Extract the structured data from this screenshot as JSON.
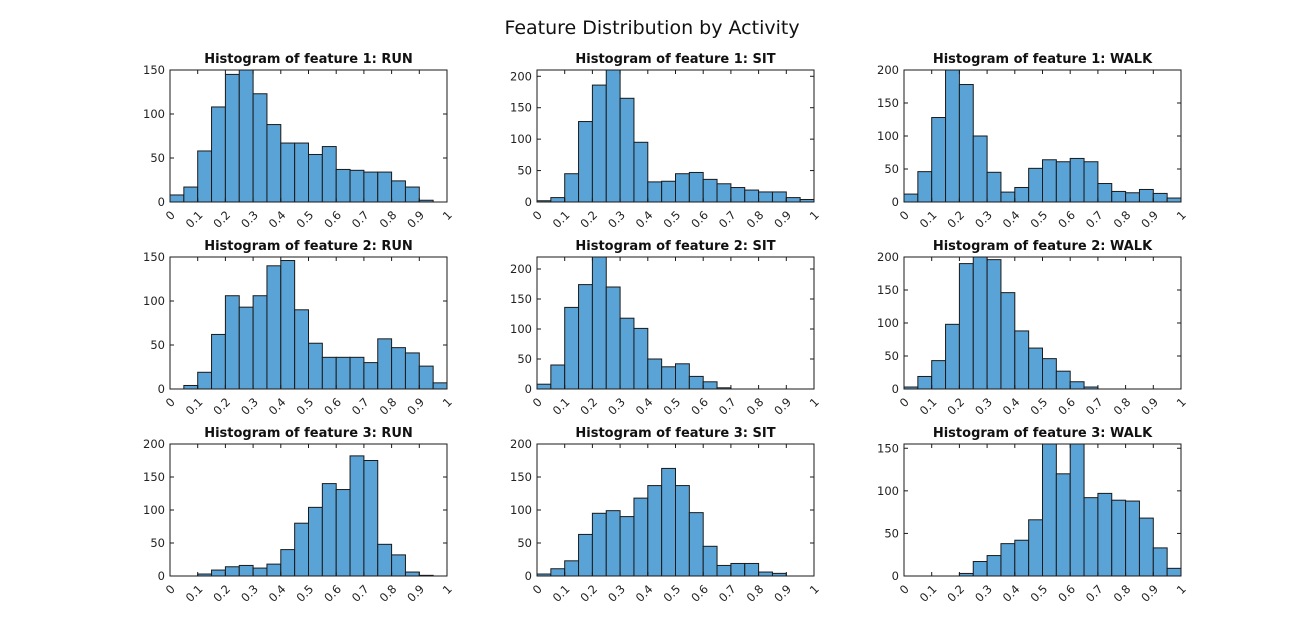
{
  "figure_title": "Feature Distribution by Activity",
  "chart_data": [
    {
      "type": "bar",
      "title": "Histogram of feature 1: RUN",
      "xlim": [
        0,
        1
      ],
      "ylim": [
        0,
        150
      ],
      "yticks": [
        0,
        50,
        100,
        150
      ],
      "xticks": [
        0,
        0.1,
        0.2,
        0.3,
        0.4,
        0.5,
        0.6,
        0.7,
        0.8,
        0.9,
        1
      ],
      "bin_width": 0.05,
      "bin_edges_start": [
        0,
        0.05,
        0.1,
        0.15,
        0.2,
        0.25,
        0.3,
        0.35,
        0.4,
        0.45,
        0.5,
        0.55,
        0.6,
        0.65,
        0.7,
        0.75,
        0.8,
        0.85,
        0.9,
        0.95
      ],
      "values": [
        8,
        17,
        58,
        108,
        145,
        152,
        123,
        88,
        67,
        67,
        54,
        63,
        37,
        36,
        34,
        34,
        24,
        17,
        2,
        0
      ]
    },
    {
      "type": "bar",
      "title": "Histogram of feature 1: SIT",
      "xlim": [
        0,
        1
      ],
      "ylim": [
        0,
        210
      ],
      "yticks": [
        0,
        50,
        100,
        150,
        200
      ],
      "xticks": [
        0,
        0.1,
        0.2,
        0.3,
        0.4,
        0.5,
        0.6,
        0.7,
        0.8,
        0.9,
        1
      ],
      "bin_width": 0.05,
      "bin_edges_start": [
        0,
        0.05,
        0.1,
        0.15,
        0.2,
        0.25,
        0.3,
        0.35,
        0.4,
        0.45,
        0.5,
        0.55,
        0.6,
        0.65,
        0.7,
        0.75,
        0.8,
        0.85,
        0.9,
        0.95
      ],
      "values": [
        2,
        7,
        45,
        128,
        186,
        212,
        165,
        95,
        32,
        33,
        45,
        47,
        36,
        29,
        23,
        19,
        16,
        16,
        7,
        4
      ]
    },
    {
      "type": "bar",
      "title": "Histogram of feature 1: WALK",
      "xlim": [
        0,
        1
      ],
      "ylim": [
        0,
        200
      ],
      "yticks": [
        0,
        50,
        100,
        150,
        200
      ],
      "xticks": [
        0,
        0.1,
        0.2,
        0.3,
        0.4,
        0.5,
        0.6,
        0.7,
        0.8,
        0.9,
        1
      ],
      "bin_width": 0.05,
      "bin_edges_start": [
        0,
        0.05,
        0.1,
        0.15,
        0.2,
        0.25,
        0.3,
        0.35,
        0.4,
        0.45,
        0.5,
        0.55,
        0.6,
        0.65,
        0.7,
        0.75,
        0.8,
        0.85,
        0.9,
        0.95
      ],
      "values": [
        12,
        46,
        128,
        200,
        178,
        100,
        45,
        15,
        22,
        51,
        64,
        61,
        66,
        61,
        28,
        16,
        14,
        19,
        13,
        6
      ]
    },
    {
      "type": "bar",
      "title": "Histogram of feature 2: RUN",
      "xlim": [
        0,
        1
      ],
      "ylim": [
        0,
        150
      ],
      "yticks": [
        0,
        50,
        100,
        150
      ],
      "xticks": [
        0,
        0.1,
        0.2,
        0.3,
        0.4,
        0.5,
        0.6,
        0.7,
        0.8,
        0.9,
        1
      ],
      "bin_width": 0.05,
      "bin_edges_start": [
        0,
        0.05,
        0.1,
        0.15,
        0.2,
        0.25,
        0.3,
        0.35,
        0.4,
        0.45,
        0.5,
        0.55,
        0.6,
        0.65,
        0.7,
        0.75,
        0.8,
        0.85,
        0.9,
        0.95
      ],
      "values": [
        0,
        4,
        19,
        62,
        106,
        93,
        106,
        140,
        146,
        90,
        52,
        36,
        36,
        36,
        30,
        57,
        47,
        41,
        26,
        7
      ]
    },
    {
      "type": "bar",
      "title": "Histogram of feature 2: SIT",
      "xlim": [
        0,
        1
      ],
      "ylim": [
        0,
        220
      ],
      "yticks": [
        0,
        50,
        100,
        150,
        200
      ],
      "xticks": [
        0,
        0.1,
        0.2,
        0.3,
        0.4,
        0.5,
        0.6,
        0.7,
        0.8,
        0.9,
        1
      ],
      "bin_width": 0.05,
      "bin_edges_start": [
        0,
        0.05,
        0.1,
        0.15,
        0.2,
        0.25,
        0.3,
        0.35,
        0.4,
        0.45,
        0.5,
        0.55,
        0.6,
        0.65,
        0.7,
        0.75,
        0.8,
        0.85,
        0.9,
        0.95
      ],
      "values": [
        8,
        40,
        136,
        174,
        222,
        170,
        118,
        101,
        50,
        37,
        42,
        21,
        12,
        2,
        0,
        0,
        0,
        0,
        0,
        0
      ]
    },
    {
      "type": "bar",
      "title": "Histogram of feature 2: WALK",
      "xlim": [
        0,
        1
      ],
      "ylim": [
        0,
        200
      ],
      "yticks": [
        0,
        50,
        100,
        150,
        200
      ],
      "xticks": [
        0,
        0.1,
        0.2,
        0.3,
        0.4,
        0.5,
        0.6,
        0.7,
        0.8,
        0.9,
        1
      ],
      "bin_width": 0.05,
      "bin_edges_start": [
        0,
        0.05,
        0.1,
        0.15,
        0.2,
        0.25,
        0.3,
        0.35,
        0.4,
        0.45,
        0.5,
        0.55,
        0.6,
        0.65,
        0.7,
        0.75,
        0.8,
        0.85,
        0.9,
        0.95
      ],
      "values": [
        3,
        19,
        43,
        98,
        190,
        200,
        196,
        146,
        88,
        62,
        46,
        27,
        11,
        3,
        0,
        0,
        0,
        0,
        0,
        0
      ]
    },
    {
      "type": "bar",
      "title": "Histogram of feature 3: RUN",
      "xlim": [
        0,
        1
      ],
      "ylim": [
        0,
        200
      ],
      "yticks": [
        0,
        50,
        100,
        150,
        200
      ],
      "xticks": [
        0,
        0.1,
        0.2,
        0.3,
        0.4,
        0.5,
        0.6,
        0.7,
        0.8,
        0.9,
        1
      ],
      "bin_width": 0.05,
      "bin_edges_start": [
        0,
        0.05,
        0.1,
        0.15,
        0.2,
        0.25,
        0.3,
        0.35,
        0.4,
        0.45,
        0.5,
        0.55,
        0.6,
        0.65,
        0.7,
        0.75,
        0.8,
        0.85,
        0.9,
        0.95
      ],
      "values": [
        0,
        0,
        3,
        9,
        14,
        16,
        12,
        18,
        40,
        80,
        104,
        140,
        131,
        182,
        175,
        48,
        32,
        6,
        1,
        0
      ]
    },
    {
      "type": "bar",
      "title": "Histogram of feature 3: SIT",
      "xlim": [
        0,
        1
      ],
      "ylim": [
        0,
        200
      ],
      "yticks": [
        0,
        50,
        100,
        150,
        200
      ],
      "xticks": [
        0,
        0.1,
        0.2,
        0.3,
        0.4,
        0.5,
        0.6,
        0.7,
        0.8,
        0.9,
        1
      ],
      "bin_width": 0.05,
      "bin_edges_start": [
        0,
        0.05,
        0.1,
        0.15,
        0.2,
        0.25,
        0.3,
        0.35,
        0.4,
        0.45,
        0.5,
        0.55,
        0.6,
        0.65,
        0.7,
        0.75,
        0.8,
        0.85,
        0.9,
        0.95
      ],
      "values": [
        3,
        11,
        23,
        63,
        95,
        99,
        90,
        118,
        137,
        163,
        137,
        96,
        45,
        16,
        19,
        19,
        6,
        4,
        0,
        0
      ]
    },
    {
      "type": "bar",
      "title": "Histogram of feature 3: WALK",
      "xlim": [
        0,
        1
      ],
      "ylim": [
        0,
        155
      ],
      "yticks": [
        0,
        50,
        100,
        150
      ],
      "xticks": [
        0,
        0.1,
        0.2,
        0.3,
        0.4,
        0.5,
        0.6,
        0.7,
        0.8,
        0.9,
        1
      ],
      "bin_width": 0.05,
      "bin_edges_start": [
        0,
        0.05,
        0.1,
        0.15,
        0.2,
        0.25,
        0.3,
        0.35,
        0.4,
        0.45,
        0.5,
        0.55,
        0.6,
        0.65,
        0.7,
        0.75,
        0.8,
        0.85,
        0.9,
        0.95
      ],
      "values": [
        0,
        0,
        0,
        0,
        3,
        17,
        24,
        38,
        42,
        66,
        158,
        120,
        160,
        92,
        97,
        89,
        88,
        68,
        33,
        9
      ]
    }
  ],
  "colors": {
    "bar_fill": "#5aa3d6",
    "bar_edge": "#1a1a1a",
    "axis": "#1a1a1a"
  }
}
